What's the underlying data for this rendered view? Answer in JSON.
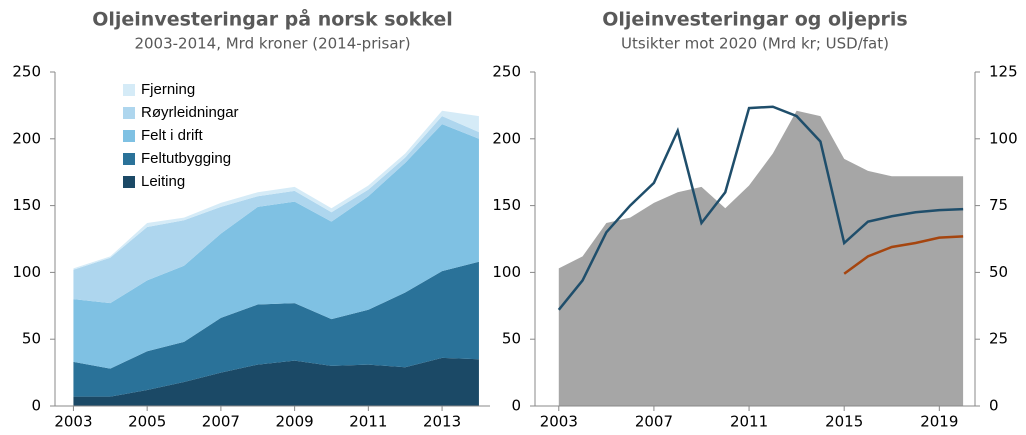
{
  "chart_data": [
    {
      "type": "area",
      "stacked": true,
      "title": "Oljeinvesteringar på norsk sokkel",
      "subtitle": "2003-2014, Mrd kroner (2014-prisar)",
      "x": [
        2003,
        2004,
        2005,
        2006,
        2007,
        2008,
        2009,
        2010,
        2011,
        2012,
        2013,
        2014
      ],
      "xlim": [
        2002.5,
        2014.3
      ],
      "xticks": [
        2003,
        2005,
        2007,
        2009,
        2011,
        2013
      ],
      "ylim": [
        0,
        250
      ],
      "yticks": [
        0,
        50,
        100,
        150,
        200,
        250
      ],
      "legend": "upper left",
      "series": [
        {
          "name": "Leiting",
          "color": "#1b4966",
          "values": [
            7,
            7,
            12,
            18,
            25,
            31,
            34,
            30,
            31,
            29,
            36,
            35
          ]
        },
        {
          "name": "Feltutbygging",
          "color": "#2a7299",
          "values": [
            26,
            21,
            29,
            30,
            41,
            45,
            43,
            35,
            41,
            56,
            65,
            73
          ]
        },
        {
          "name": "Felt i drift",
          "color": "#7fc1e3",
          "values": [
            47,
            49,
            53,
            57,
            63,
            73,
            76,
            73,
            85,
            97,
            110,
            92
          ]
        },
        {
          "name": "Røyrleidningar",
          "color": "#aed6ee",
          "values": [
            22,
            34,
            40,
            34,
            20,
            8,
            8,
            7,
            5,
            4,
            6,
            5
          ]
        },
        {
          "name": "Fjerning",
          "color": "#d5ebf7",
          "values": [
            1,
            1,
            3,
            2,
            3,
            3,
            3,
            3,
            3,
            3,
            4,
            12
          ]
        }
      ]
    },
    {
      "type": "combo",
      "title": "Oljeinvesteringar og oljepris",
      "subtitle": "Utsikter mot 2020 (Mrd kr; USD/fat)",
      "x": [
        2003,
        2004,
        2005,
        2006,
        2007,
        2008,
        2009,
        2010,
        2011,
        2012,
        2013,
        2014,
        2015,
        2016,
        2017,
        2018,
        2019,
        2020
      ],
      "xlim": [
        2002,
        2020.5
      ],
      "xticks": [
        2003,
        2007,
        2011,
        2015,
        2019
      ],
      "ylim": [
        0,
        250
      ],
      "yticks": [
        0,
        50,
        100,
        150,
        200,
        250
      ],
      "y2lim": [
        0,
        125
      ],
      "y2ticks": [
        0,
        25,
        50,
        75,
        100,
        125
      ],
      "series": [
        {
          "type": "area",
          "axis": "y",
          "color": "#a6a6a6",
          "values": [
            103,
            112,
            137,
            141,
            152,
            160,
            164,
            148,
            165,
            189,
            221,
            217,
            185,
            176,
            172,
            172,
            172,
            172
          ]
        },
        {
          "type": "line",
          "axis": "y2",
          "color": "#1f4e6b",
          "values": [
            36,
            47,
            65,
            75,
            83.5,
            103,
            68.5,
            80,
            111.5,
            112,
            108.5,
            99,
            61,
            69,
            71,
            72.5,
            73.3,
            73.7
          ]
        },
        {
          "type": "line",
          "axis": "y2",
          "color": "#a5450f",
          "values": [
            null,
            null,
            null,
            null,
            null,
            null,
            null,
            null,
            null,
            null,
            null,
            null,
            49.5,
            56,
            59.5,
            61,
            63,
            63.5
          ]
        }
      ]
    }
  ]
}
